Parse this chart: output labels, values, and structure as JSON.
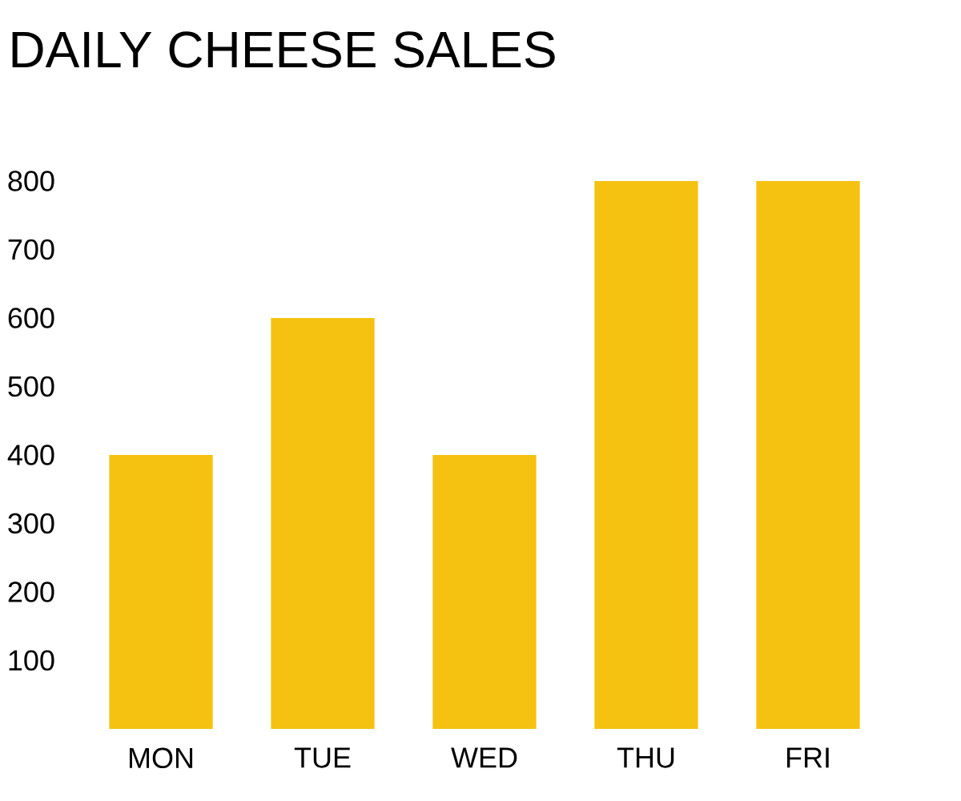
{
  "chart_data": {
    "type": "bar",
    "title": "DAILY CHEESE SALES",
    "categories": [
      "MON",
      "TUE",
      "WED",
      "THU",
      "FRI"
    ],
    "values": [
      400,
      600,
      400,
      800,
      800
    ],
    "color": "#f5c211",
    "ylim": [
      0,
      800
    ],
    "yticks": [
      100,
      200,
      300,
      400,
      500,
      600,
      700,
      800
    ]
  }
}
